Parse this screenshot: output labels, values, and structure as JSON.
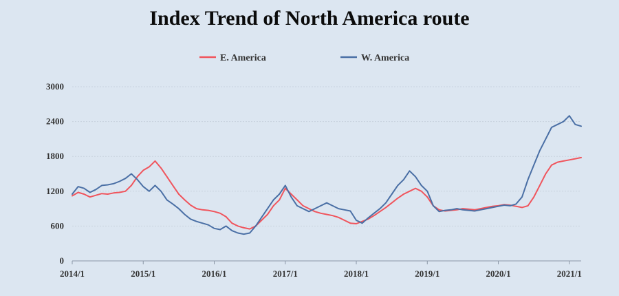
{
  "chart_data": {
    "type": "line",
    "title": "Index Trend of North America route",
    "xlabel": "",
    "ylabel": "",
    "ylim": [
      0,
      3000
    ],
    "yticks": [
      0,
      600,
      1200,
      1800,
      2400,
      3000
    ],
    "xticks": [
      "2014/1",
      "2015/1",
      "2016/1",
      "2017/1",
      "2018/1",
      "2019/1",
      "2020/1",
      "2021/1"
    ],
    "xrange": [
      "2014/1",
      "2021/3"
    ],
    "grid": "horizontal",
    "legend": "top-center",
    "series": [
      {
        "name": "E. America",
        "color": "#f0545c",
        "points": [
          [
            "2014/1",
            1120
          ],
          [
            "2014/2",
            1180
          ],
          [
            "2014/3",
            1150
          ],
          [
            "2014/4",
            1100
          ],
          [
            "2014/5",
            1130
          ],
          [
            "2014/6",
            1160
          ],
          [
            "2014/7",
            1150
          ],
          [
            "2014/8",
            1170
          ],
          [
            "2014/9",
            1180
          ],
          [
            "2014/10",
            1200
          ],
          [
            "2014/11",
            1300
          ],
          [
            "2014/12",
            1450
          ],
          [
            "2015/1",
            1560
          ],
          [
            "2015/2",
            1620
          ],
          [
            "2015/3",
            1720
          ],
          [
            "2015/4",
            1600
          ],
          [
            "2015/5",
            1450
          ],
          [
            "2015/6",
            1300
          ],
          [
            "2015/7",
            1150
          ],
          [
            "2015/8",
            1050
          ],
          [
            "2015/9",
            960
          ],
          [
            "2015/10",
            900
          ],
          [
            "2015/11",
            880
          ],
          [
            "2015/12",
            870
          ],
          [
            "2016/1",
            850
          ],
          [
            "2016/2",
            820
          ],
          [
            "2016/3",
            760
          ],
          [
            "2016/4",
            650
          ],
          [
            "2016/5",
            600
          ],
          [
            "2016/6",
            570
          ],
          [
            "2016/7",
            550
          ],
          [
            "2016/8",
            600
          ],
          [
            "2016/9",
            700
          ],
          [
            "2016/10",
            800
          ],
          [
            "2016/11",
            950
          ],
          [
            "2016/12",
            1050
          ],
          [
            "2017/1",
            1250
          ],
          [
            "2017/2",
            1150
          ],
          [
            "2017/3",
            1050
          ],
          [
            "2017/4",
            950
          ],
          [
            "2017/5",
            900
          ],
          [
            "2017/6",
            850
          ],
          [
            "2017/7",
            820
          ],
          [
            "2017/8",
            800
          ],
          [
            "2017/9",
            780
          ],
          [
            "2017/10",
            750
          ],
          [
            "2017/11",
            700
          ],
          [
            "2017/12",
            650
          ],
          [
            "2018/1",
            640
          ],
          [
            "2018/2",
            680
          ],
          [
            "2018/3",
            720
          ],
          [
            "2018/4",
            780
          ],
          [
            "2018/5",
            850
          ],
          [
            "2018/6",
            920
          ],
          [
            "2018/7",
            1000
          ],
          [
            "2018/8",
            1080
          ],
          [
            "2018/9",
            1150
          ],
          [
            "2018/10",
            1200
          ],
          [
            "2018/11",
            1250
          ],
          [
            "2018/12",
            1200
          ],
          [
            "2019/1",
            1100
          ],
          [
            "2019/2",
            950
          ],
          [
            "2019/3",
            880
          ],
          [
            "2019/4",
            860
          ],
          [
            "2019/5",
            870
          ],
          [
            "2019/6",
            880
          ],
          [
            "2019/7",
            900
          ],
          [
            "2019/8",
            890
          ],
          [
            "2019/9",
            880
          ],
          [
            "2019/10",
            900
          ],
          [
            "2019/11",
            920
          ],
          [
            "2019/12",
            940
          ],
          [
            "2020/1",
            950
          ],
          [
            "2020/2",
            970
          ],
          [
            "2020/3",
            960
          ],
          [
            "2020/4",
            940
          ],
          [
            "2020/5",
            920
          ],
          [
            "2020/6",
            950
          ],
          [
            "2020/7",
            1100
          ],
          [
            "2020/8",
            1300
          ],
          [
            "2020/9",
            1500
          ],
          [
            "2020/10",
            1650
          ],
          [
            "2020/11",
            1700
          ],
          [
            "2020/12",
            1720
          ],
          [
            "2021/1",
            1740
          ],
          [
            "2021/2",
            1760
          ],
          [
            "2021/3",
            1780
          ]
        ]
      },
      {
        "name": "W. America",
        "color": "#4a6fa5",
        "points": [
          [
            "2014/1",
            1150
          ],
          [
            "2014/2",
            1280
          ],
          [
            "2014/3",
            1250
          ],
          [
            "2014/4",
            1180
          ],
          [
            "2014/5",
            1230
          ],
          [
            "2014/6",
            1300
          ],
          [
            "2014/7",
            1310
          ],
          [
            "2014/8",
            1330
          ],
          [
            "2014/9",
            1370
          ],
          [
            "2014/10",
            1420
          ],
          [
            "2014/11",
            1500
          ],
          [
            "2014/12",
            1400
          ],
          [
            "2015/1",
            1280
          ],
          [
            "2015/2",
            1200
          ],
          [
            "2015/3",
            1300
          ],
          [
            "2015/4",
            1200
          ],
          [
            "2015/5",
            1050
          ],
          [
            "2015/6",
            980
          ],
          [
            "2015/7",
            900
          ],
          [
            "2015/8",
            800
          ],
          [
            "2015/9",
            720
          ],
          [
            "2015/10",
            680
          ],
          [
            "2015/11",
            650
          ],
          [
            "2015/12",
            620
          ],
          [
            "2016/1",
            560
          ],
          [
            "2016/2",
            540
          ],
          [
            "2016/3",
            600
          ],
          [
            "2016/4",
            520
          ],
          [
            "2016/5",
            480
          ],
          [
            "2016/6",
            460
          ],
          [
            "2016/7",
            480
          ],
          [
            "2016/8",
            600
          ],
          [
            "2016/9",
            750
          ],
          [
            "2016/10",
            900
          ],
          [
            "2016/11",
            1050
          ],
          [
            "2016/12",
            1150
          ],
          [
            "2017/1",
            1300
          ],
          [
            "2017/2",
            1100
          ],
          [
            "2017/3",
            950
          ],
          [
            "2017/4",
            900
          ],
          [
            "2017/5",
            850
          ],
          [
            "2017/6",
            900
          ],
          [
            "2017/7",
            950
          ],
          [
            "2017/8",
            1000
          ],
          [
            "2017/9",
            950
          ],
          [
            "2017/10",
            900
          ],
          [
            "2017/11",
            880
          ],
          [
            "2017/12",
            860
          ],
          [
            "2018/1",
            700
          ],
          [
            "2018/2",
            650
          ],
          [
            "2018/3",
            740
          ],
          [
            "2018/4",
            820
          ],
          [
            "2018/5",
            900
          ],
          [
            "2018/6",
            1000
          ],
          [
            "2018/7",
            1150
          ],
          [
            "2018/8",
            1300
          ],
          [
            "2018/9",
            1400
          ],
          [
            "2018/10",
            1550
          ],
          [
            "2018/11",
            1450
          ],
          [
            "2018/12",
            1300
          ],
          [
            "2019/1",
            1200
          ],
          [
            "2019/2",
            950
          ],
          [
            "2019/3",
            850
          ],
          [
            "2019/4",
            870
          ],
          [
            "2019/5",
            880
          ],
          [
            "2019/6",
            900
          ],
          [
            "2019/7",
            880
          ],
          [
            "2019/8",
            870
          ],
          [
            "2019/9",
            860
          ],
          [
            "2019/10",
            880
          ],
          [
            "2019/11",
            900
          ],
          [
            "2019/12",
            920
          ],
          [
            "2020/1",
            940
          ],
          [
            "2020/2",
            960
          ],
          [
            "2020/3",
            950
          ],
          [
            "2020/4",
            980
          ],
          [
            "2020/5",
            1100
          ],
          [
            "2020/6",
            1400
          ],
          [
            "2020/7",
            1650
          ],
          [
            "2020/8",
            1900
          ],
          [
            "2020/9",
            2100
          ],
          [
            "2020/10",
            2300
          ],
          [
            "2020/11",
            2350
          ],
          [
            "2020/12",
            2400
          ],
          [
            "2021/1",
            2500
          ],
          [
            "2021/2",
            2350
          ],
          [
            "2021/3",
            2320
          ]
        ]
      }
    ]
  }
}
